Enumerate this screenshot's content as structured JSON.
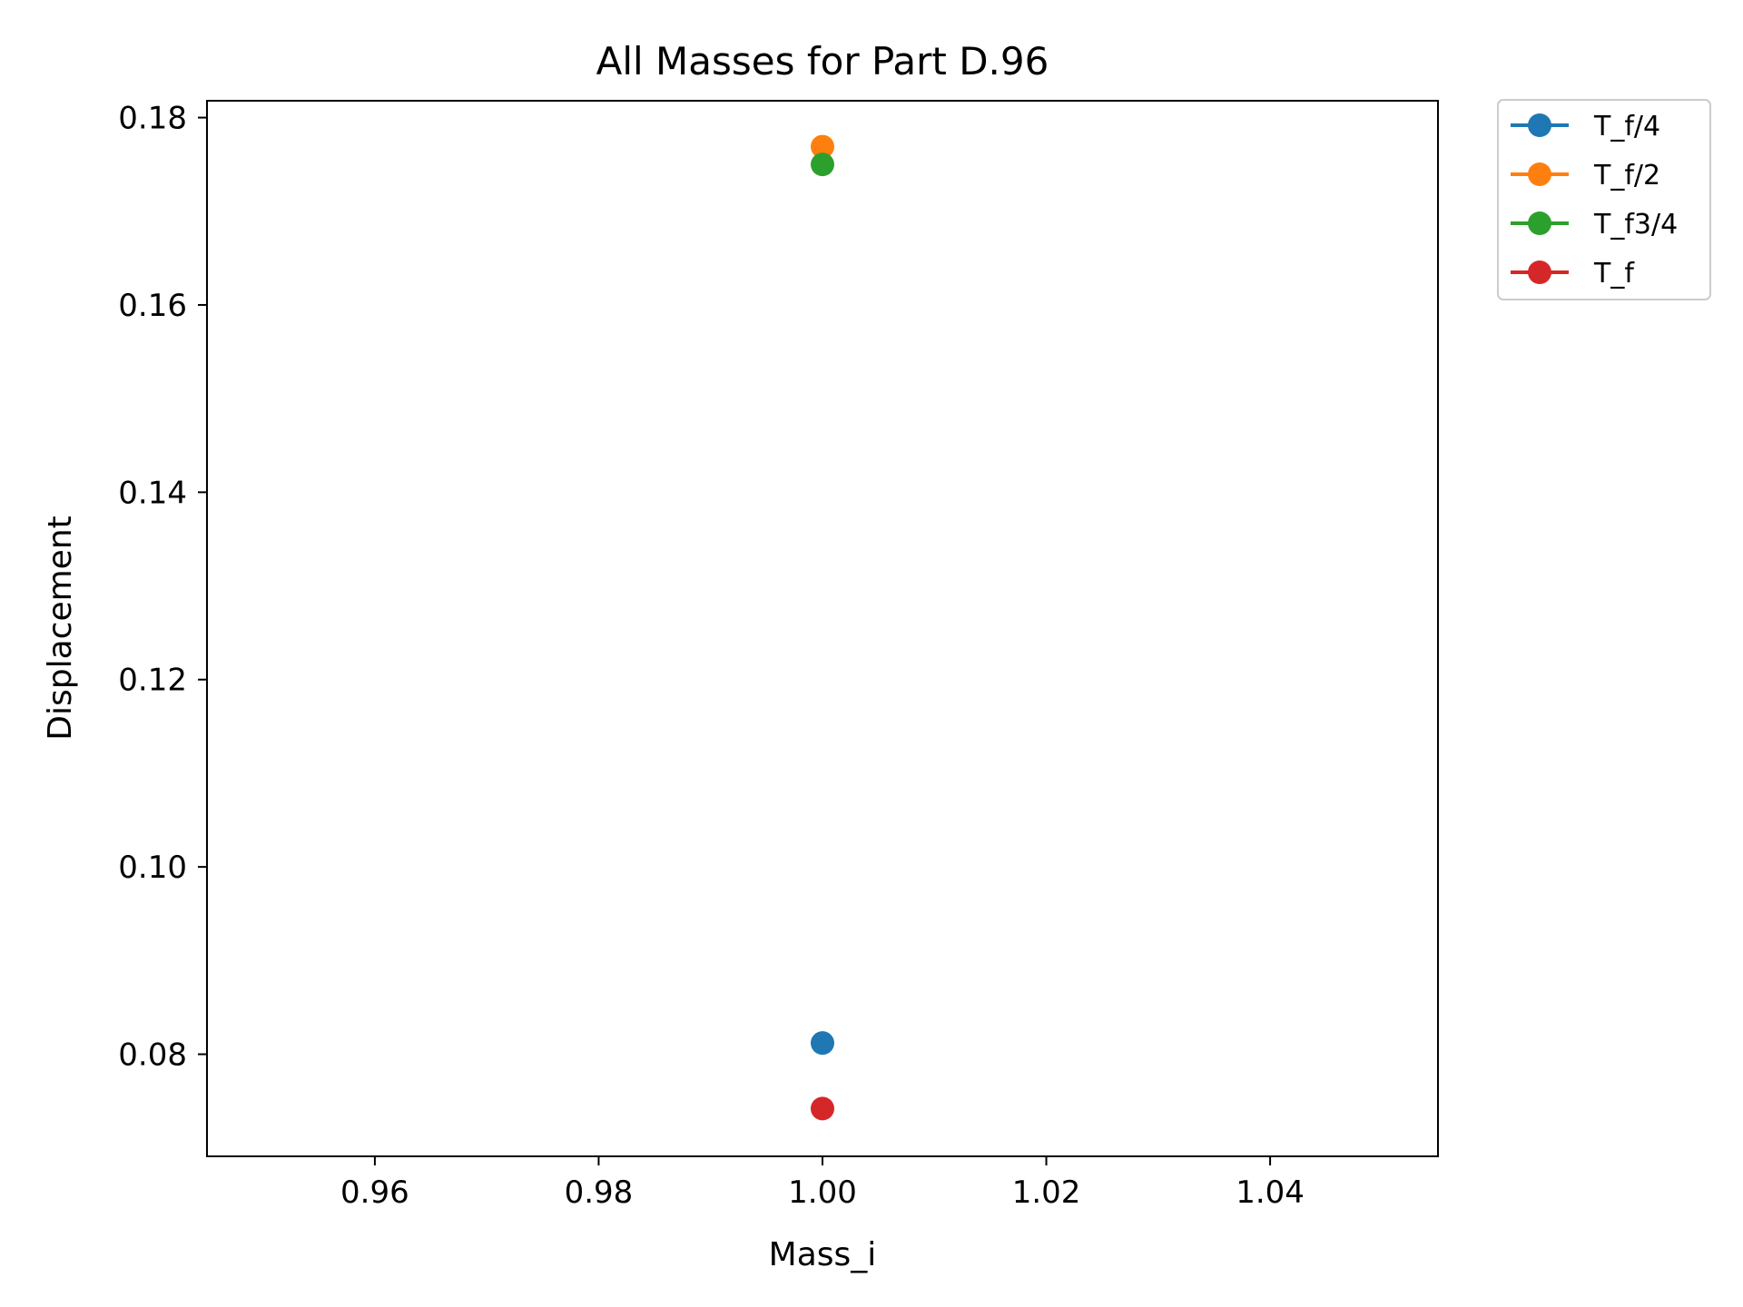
{
  "chart_data": {
    "type": "scatter",
    "title": "All Masses for Part D.96",
    "xlabel": "Mass_i",
    "ylabel": "Displacement",
    "xlim": [
      0.945,
      1.055
    ],
    "ylim": [
      0.0691,
      0.1818
    ],
    "xticks": [
      0.96,
      0.98,
      1.0,
      1.02,
      1.04
    ],
    "xtick_labels": [
      "0.96",
      "0.98",
      "1.00",
      "1.02",
      "1.04"
    ],
    "yticks": [
      0.08,
      0.1,
      0.12,
      0.14,
      0.16,
      0.18
    ],
    "ytick_labels": [
      "0.08",
      "0.10",
      "0.12",
      "0.14",
      "0.16",
      "0.18"
    ],
    "grid": false,
    "legend_position": "outside-top-right",
    "series": [
      {
        "name": "T_f/4",
        "color": "#1f77b4",
        "x": [
          1.0
        ],
        "y": [
          0.0812
        ]
      },
      {
        "name": "T_f/2",
        "color": "#ff7f0e",
        "x": [
          1.0
        ],
        "y": [
          0.1769
        ]
      },
      {
        "name": "T_f3/4",
        "color": "#2ca02c",
        "x": [
          1.0
        ],
        "y": [
          0.175
        ]
      },
      {
        "name": "T_f",
        "color": "#d62728",
        "x": [
          1.0
        ],
        "y": [
          0.0742
        ]
      }
    ]
  }
}
